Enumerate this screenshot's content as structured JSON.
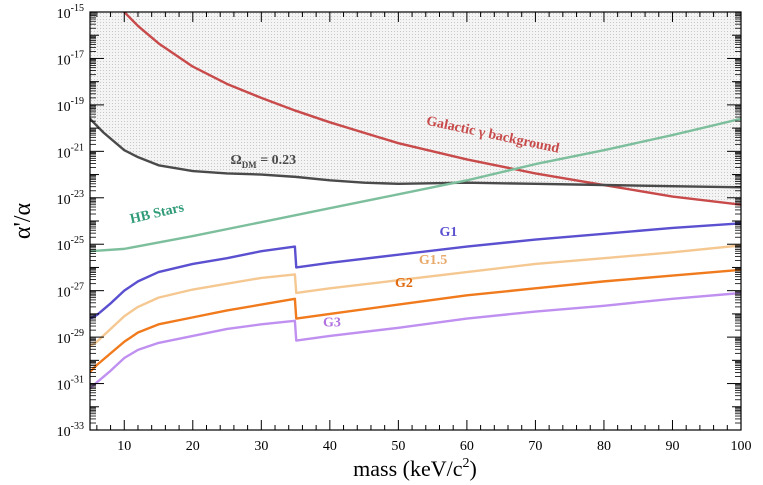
{
  "chart_data": {
    "type": "line",
    "xlabel": "mass (keV/c",
    "xlabel_sup": "2",
    "xlabel_close": ")",
    "ylabel": "α'/α",
    "xlim": [
      5,
      100
    ],
    "ylim_exponent": [
      -33,
      -15
    ],
    "yscale": "log",
    "grid": false,
    "x_ticks": [
      "10",
      "20",
      "30",
      "40",
      "50",
      "60",
      "70",
      "80",
      "90",
      "100"
    ],
    "y_ticks": [
      {
        "base": "10",
        "exp": "-15"
      },
      {
        "base": "10",
        "exp": "-17"
      },
      {
        "base": "10",
        "exp": "-19"
      },
      {
        "base": "10",
        "exp": "-21"
      },
      {
        "base": "10",
        "exp": "-23"
      },
      {
        "base": "10",
        "exp": "-25"
      },
      {
        "base": "10",
        "exp": "-27"
      },
      {
        "base": "10",
        "exp": "-29"
      },
      {
        "base": "10",
        "exp": "-31"
      },
      {
        "base": "10",
        "exp": "-33"
      }
    ],
    "series": [
      {
        "name": "Galactic γ background",
        "color": "#c84a4a",
        "x": [
          10,
          12,
          15,
          20,
          25,
          30,
          35,
          40,
          50,
          60,
          70,
          80,
          90,
          100
        ],
        "log10_y": [
          -15.0,
          -15.6,
          -16.35,
          -17.35,
          -18.1,
          -18.7,
          -19.25,
          -19.75,
          -20.65,
          -21.35,
          -21.95,
          -22.45,
          -22.95,
          -23.3
        ]
      },
      {
        "name": "Ω",
        "name_sub": "DM",
        "name_tail": " = 0.23",
        "color": "#4a4a4a",
        "x": [
          5,
          7,
          10,
          12,
          15,
          20,
          25,
          30,
          35,
          40,
          45,
          50,
          60,
          70,
          80,
          90,
          100
        ],
        "log10_y": [
          -19.6,
          -20.2,
          -20.95,
          -21.25,
          -21.6,
          -21.85,
          -21.95,
          -22.0,
          -22.1,
          -22.25,
          -22.35,
          -22.4,
          -22.35,
          -22.4,
          -22.45,
          -22.5,
          -22.55
        ]
      },
      {
        "name": "HB Stars",
        "color": "#7dbf9c",
        "label_color": "#2e9a78",
        "x": [
          5,
          10,
          20,
          30,
          40,
          50,
          60,
          70,
          80,
          90,
          100
        ],
        "log10_y": [
          -25.3,
          -25.2,
          -24.65,
          -24.05,
          -23.45,
          -22.85,
          -22.25,
          -21.55,
          -20.95,
          -20.3,
          -19.6
        ]
      },
      {
        "name": "G1",
        "color": "#5a50d0",
        "x": [
          5,
          6,
          8,
          10,
          12,
          15,
          20,
          25,
          30,
          34.9,
          35.1,
          40,
          50,
          60,
          70,
          80,
          90,
          100
        ],
        "log10_y": [
          -28.2,
          -28.05,
          -27.55,
          -27.0,
          -26.6,
          -26.2,
          -25.85,
          -25.6,
          -25.3,
          -25.1,
          -26.0,
          -25.8,
          -25.45,
          -25.1,
          -24.8,
          -24.55,
          -24.3,
          -24.1
        ]
      },
      {
        "name": "G1.5",
        "color": "#f5c892",
        "label_color": "#e8a86a",
        "x": [
          5,
          6,
          8,
          10,
          12,
          15,
          20,
          25,
          30,
          34.9,
          35.1,
          40,
          50,
          60,
          70,
          80,
          90,
          100
        ],
        "log10_y": [
          -29.4,
          -29.2,
          -28.65,
          -28.1,
          -27.7,
          -27.3,
          -26.95,
          -26.7,
          -26.45,
          -26.3,
          -27.1,
          -26.9,
          -26.55,
          -26.2,
          -25.85,
          -25.6,
          -25.35,
          -25.05
        ]
      },
      {
        "name": "G2",
        "color": "#f07a1c",
        "label_color": "#e06a10",
        "x": [
          5,
          6,
          8,
          10,
          12,
          15,
          20,
          25,
          30,
          34.9,
          35.1,
          40,
          50,
          60,
          70,
          80,
          90,
          100
        ],
        "log10_y": [
          -30.5,
          -30.2,
          -29.7,
          -29.2,
          -28.8,
          -28.45,
          -28.15,
          -27.85,
          -27.6,
          -27.35,
          -28.2,
          -28.0,
          -27.6,
          -27.2,
          -26.9,
          -26.6,
          -26.35,
          -26.1
        ]
      },
      {
        "name": "G3",
        "color": "#c090f0",
        "label_color": "#b070e0",
        "x": [
          5,
          6,
          8,
          10,
          12,
          15,
          20,
          25,
          30,
          34.9,
          35.1,
          40,
          50,
          60,
          70,
          80,
          90,
          100
        ],
        "log10_y": [
          -31.2,
          -30.95,
          -30.45,
          -29.9,
          -29.55,
          -29.25,
          -28.95,
          -28.65,
          -28.45,
          -28.3,
          -29.15,
          -28.95,
          -28.6,
          -28.2,
          -27.9,
          -27.65,
          -27.35,
          -27.1
        ]
      }
    ],
    "shaded_region": {
      "description": "excluded",
      "fill": "#ededed"
    }
  }
}
